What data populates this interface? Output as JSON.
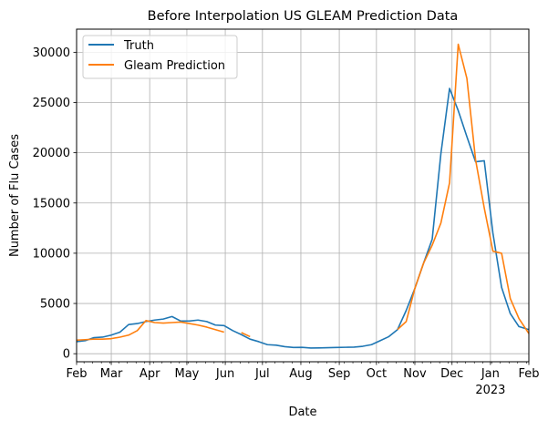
{
  "chart_data": {
    "type": "line",
    "title": "Before Interpolation US GLEAM Prediction Data",
    "xlabel": "Date",
    "ylabel": "Number of Flu Cases",
    "xlim": [
      "2022-02-01",
      "2023-02-01"
    ],
    "ylim": [
      -800,
      32300
    ],
    "grid": true,
    "legend_position": "upper-left",
    "x_ticks": [
      {
        "date": "2022-02-01",
        "label": "Feb"
      },
      {
        "date": "2022-03-01",
        "label": "Mar"
      },
      {
        "date": "2022-04-01",
        "label": "Apr"
      },
      {
        "date": "2022-05-01",
        "label": "May"
      },
      {
        "date": "2022-06-01",
        "label": "Jun"
      },
      {
        "date": "2022-07-01",
        "label": "Jul"
      },
      {
        "date": "2022-08-01",
        "label": "Aug"
      },
      {
        "date": "2022-09-01",
        "label": "Sep"
      },
      {
        "date": "2022-10-01",
        "label": "Oct"
      },
      {
        "date": "2022-11-01",
        "label": "Nov"
      },
      {
        "date": "2022-12-01",
        "label": "Dec"
      },
      {
        "date": "2023-01-01",
        "label": "Jan",
        "sublabel": "2023"
      },
      {
        "date": "2023-02-01",
        "label": "Feb"
      }
    ],
    "y_ticks": [
      0,
      5000,
      10000,
      15000,
      20000,
      25000,
      30000
    ],
    "y_tick_labels": [
      "0",
      "5000",
      "10000",
      "15000",
      "20000",
      "25000",
      "30000"
    ],
    "series": [
      {
        "name": "Truth",
        "color": "#1f77b4",
        "segments": [
          {
            "x": [
              "2022-02-01",
              "2022-02-08",
              "2022-02-15",
              "2022-02-22",
              "2022-03-01",
              "2022-03-08",
              "2022-03-15",
              "2022-03-22",
              "2022-03-29",
              "2022-04-05",
              "2022-04-12",
              "2022-04-19",
              "2022-04-26",
              "2022-05-03",
              "2022-05-10",
              "2022-05-17",
              "2022-05-24",
              "2022-05-31",
              "2022-06-07",
              "2022-06-14",
              "2022-06-21",
              "2022-06-28",
              "2022-07-05",
              "2022-07-12",
              "2022-07-19",
              "2022-07-26",
              "2022-08-02",
              "2022-08-09",
              "2022-08-16",
              "2022-08-23",
              "2022-08-30",
              "2022-09-06",
              "2022-09-13",
              "2022-09-20",
              "2022-09-27",
              "2022-10-04",
              "2022-10-11",
              "2022-10-18",
              "2022-10-25",
              "2022-11-01",
              "2022-11-08",
              "2022-11-15",
              "2022-11-22",
              "2022-11-29",
              "2022-12-06",
              "2022-12-13",
              "2022-12-20",
              "2022-12-27",
              "2023-01-03",
              "2023-01-10",
              "2023-01-17",
              "2023-01-24",
              "2023-02-01"
            ],
            "y": [
              1200,
              1300,
              1600,
              1650,
              1850,
              2150,
              2900,
              3000,
              3200,
              3350,
              3450,
              3700,
              3250,
              3250,
              3350,
              3200,
              2850,
              2800,
              2300,
              1900,
              1450,
              1200,
              900,
              850,
              700,
              620,
              630,
              570,
              580,
              600,
              620,
              640,
              660,
              740,
              900,
              1300,
              1700,
              2400,
              4300,
              6500,
              9000,
              11400,
              19900,
              26400,
              24200,
              21600,
              19100,
              19200,
              12000,
              6600,
              4000,
              2700,
              2400
            ]
          }
        ]
      },
      {
        "name": "Gleam Prediction",
        "color": "#ff7f0e",
        "segments": [
          {
            "x": [
              "2022-02-01",
              "2022-02-08",
              "2022-02-15",
              "2022-02-22",
              "2022-03-01",
              "2022-03-08",
              "2022-03-15",
              "2022-03-22",
              "2022-03-29",
              "2022-04-05",
              "2022-04-12",
              "2022-04-19",
              "2022-04-26",
              "2022-05-03",
              "2022-05-10",
              "2022-05-17",
              "2022-05-24",
              "2022-05-31"
            ],
            "y": [
              1350,
              1400,
              1450,
              1450,
              1500,
              1650,
              1850,
              2300,
              3300,
              3100,
              3050,
              3100,
              3150,
              3000,
              2850,
              2650,
              2400,
              2150
            ]
          },
          {
            "x": [
              "2022-06-14",
              "2022-06-21"
            ],
            "y": [
              2100,
              1700
            ]
          },
          {
            "x": [
              "2022-10-18",
              "2022-10-25",
              "2022-11-01",
              "2022-11-08",
              "2022-11-15",
              "2022-11-22",
              "2022-11-29",
              "2022-12-06",
              "2022-12-13",
              "2022-12-20",
              "2022-12-27",
              "2023-01-03",
              "2023-01-10",
              "2023-01-17",
              "2023-01-24",
              "2023-02-01"
            ],
            "y": [
              2400,
              3200,
              6500,
              9000,
              10800,
              13000,
              17000,
              30800,
              27400,
              19300,
              14500,
              10200,
              10000,
              5500,
              3500,
              2000
            ]
          }
        ]
      }
    ]
  }
}
